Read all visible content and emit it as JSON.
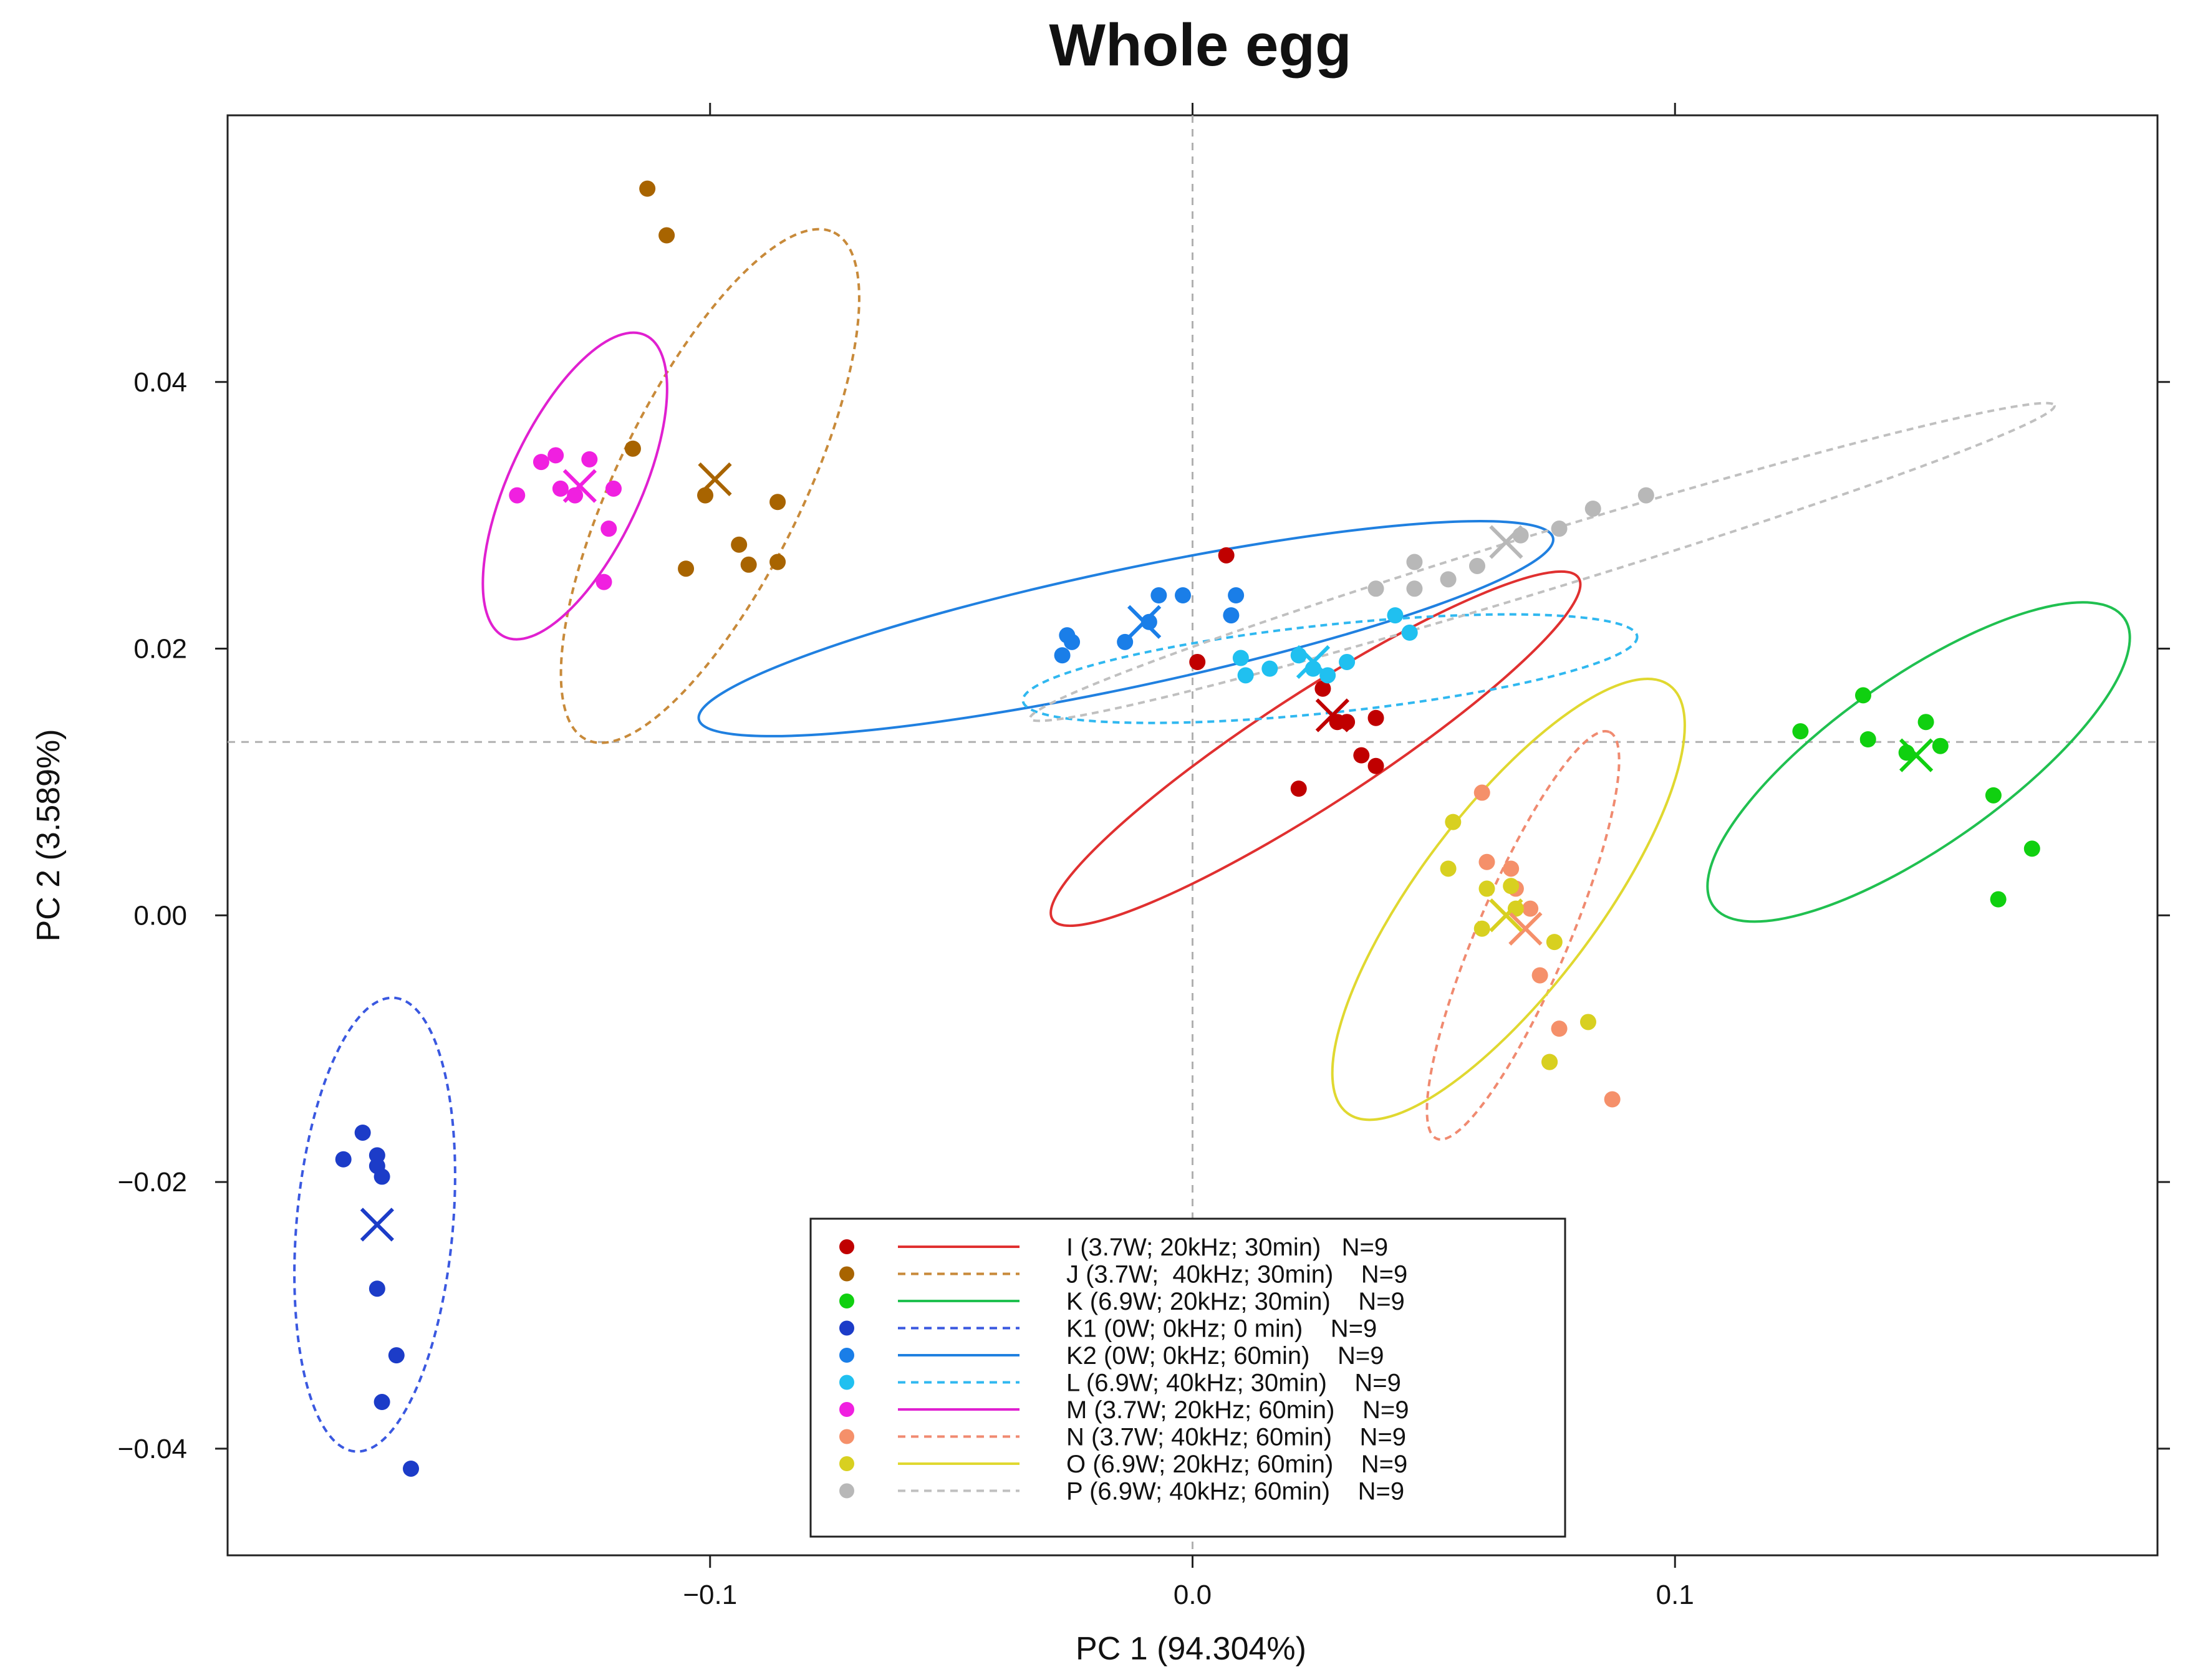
{
  "chart_data": {
    "type": "scatter",
    "title": "Whole egg",
    "xlabel": "PC 1 (94.304%)",
    "ylabel": "PC 2 (3.589%)",
    "xlim": [
      -0.2,
      0.2
    ],
    "ylim": [
      -0.048,
      0.06
    ],
    "xticks": [
      -0.1,
      0.0,
      0.1
    ],
    "xtick_labels": [
      "−0.1",
      "0.0",
      "0.1"
    ],
    "yticks": [
      -0.04,
      -0.02,
      0.0,
      0.02,
      0.04
    ],
    "ytick_labels": [
      "−0.04",
      "−0.02",
      "0.00",
      "0.02",
      "0.04"
    ],
    "reference_lines": {
      "x": 0.0,
      "y": 0.013
    },
    "grid": false,
    "legend_position": "bottom-center",
    "series": [
      {
        "name": "I",
        "label": "I (3.7W; 20kHz; 30min)   N=9",
        "point_color": "#c00000",
        "line_color": "#e03030",
        "line_style": "solid",
        "points": [
          [
            0.007,
            0.027
          ],
          [
            0.001,
            0.019
          ],
          [
            0.027,
            0.017
          ],
          [
            0.03,
            0.0145
          ],
          [
            0.032,
            0.0145
          ],
          [
            0.038,
            0.0148
          ],
          [
            0.035,
            0.012
          ],
          [
            0.038,
            0.0112
          ],
          [
            0.022,
            0.0095
          ]
        ],
        "center": [
          0.029,
          0.015
        ],
        "ellipse": {
          "cx": 0.0255,
          "cy": 0.0125,
          "rx": 0.065,
          "ry": 0.0116,
          "angle": -33
        }
      },
      {
        "name": "J",
        "label": "J (3.7W;  40kHz; 30min)    N=9",
        "point_color": "#a86400",
        "line_color": "#c88a3a",
        "line_style": "dashed",
        "points": [
          [
            -0.113,
            0.0545
          ],
          [
            -0.109,
            0.051
          ],
          [
            -0.116,
            0.035
          ],
          [
            -0.101,
            0.0315
          ],
          [
            -0.086,
            0.031
          ],
          [
            -0.094,
            0.0278
          ],
          [
            -0.092,
            0.0263
          ],
          [
            -0.086,
            0.0265
          ],
          [
            -0.105,
            0.026
          ]
        ],
        "center": [
          -0.099,
          0.0327
        ],
        "ellipse": {
          "cx": -0.1,
          "cy": 0.0322,
          "rx": 0.0585,
          "ry": 0.0192,
          "angle": -64
        }
      },
      {
        "name": "K",
        "label": "K (6.9W; 20kHz; 30min)    N=9",
        "point_color": "#10d010",
        "line_color": "#20c050",
        "line_style": "solid",
        "points": [
          [
            0.139,
            0.0165
          ],
          [
            0.126,
            0.0138
          ],
          [
            0.14,
            0.0132
          ],
          [
            0.152,
            0.0145
          ],
          [
            0.155,
            0.0127
          ],
          [
            0.148,
            0.0122
          ],
          [
            0.166,
            0.009
          ],
          [
            0.174,
            0.005
          ],
          [
            0.167,
            0.0012
          ]
        ],
        "center": [
          0.15,
          0.012
        ],
        "ellipse": {
          "cx": 0.1505,
          "cy": 0.0115,
          "rx": 0.052,
          "ry": 0.0175,
          "angle": -35
        }
      },
      {
        "name": "K1",
        "label": "K1 (0W; 0kHz; 0 min)    N=9",
        "point_color": "#1c3cc8",
        "line_color": "#3a58e0",
        "line_style": "dashed",
        "points": [
          [
            -0.172,
            -0.0163
          ],
          [
            -0.176,
            -0.0183
          ],
          [
            -0.169,
            -0.018
          ],
          [
            -0.169,
            -0.0188
          ],
          [
            -0.168,
            -0.0196
          ],
          [
            -0.169,
            -0.028
          ],
          [
            -0.165,
            -0.033
          ],
          [
            -0.168,
            -0.0365
          ],
          [
            -0.162,
            -0.0415
          ]
        ],
        "center": [
          -0.169,
          -0.0232
        ],
        "ellipse": {
          "cx": -0.1695,
          "cy": -0.0232,
          "rx": 0.0472,
          "ry": 0.0162,
          "angle": -85
        }
      },
      {
        "name": "K2",
        "label": "K2 (0W; 0kHz; 60min)    N=9",
        "point_color": "#1a7ee8",
        "line_color": "#2080e0",
        "line_style": "solid",
        "points": [
          [
            -0.025,
            0.0205
          ],
          [
            -0.027,
            0.0195
          ],
          [
            -0.026,
            0.021
          ],
          [
            -0.014,
            0.0205
          ],
          [
            -0.007,
            0.024
          ],
          [
            -0.002,
            0.024
          ],
          [
            0.008,
            0.0225
          ],
          [
            0.009,
            0.024
          ],
          [
            -0.009,
            0.022
          ]
        ],
        "center": [
          -0.01,
          0.022
        ],
        "ellipse": {
          "cx": -0.0138,
          "cy": 0.0215,
          "rx": 0.0905,
          "ry": 0.0122,
          "angle": -12
        }
      },
      {
        "name": "L",
        "label": "L (6.9W; 40kHz; 30min)    N=9",
        "point_color": "#20c0f0",
        "line_color": "#30b8f0",
        "line_style": "dashed",
        "points": [
          [
            0.01,
            0.0193
          ],
          [
            0.011,
            0.018
          ],
          [
            0.016,
            0.0185
          ],
          [
            0.022,
            0.0195
          ],
          [
            0.025,
            0.0185
          ],
          [
            0.028,
            0.018
          ],
          [
            0.032,
            0.019
          ],
          [
            0.042,
            0.0225
          ],
          [
            0.045,
            0.0212
          ]
        ],
        "center": [
          0.025,
          0.019
        ],
        "ellipse": {
          "cx": 0.0285,
          "cy": 0.0185,
          "rx": 0.064,
          "ry": 0.0091,
          "angle": -6
        }
      },
      {
        "name": "M",
        "label": "M (3.7W; 20kHz; 60min)    N=9",
        "point_color": "#f020e0",
        "line_color": "#e020d0",
        "line_style": "solid",
        "points": [
          [
            -0.132,
            0.0345
          ],
          [
            -0.135,
            0.034
          ],
          [
            -0.125,
            0.0342
          ],
          [
            -0.14,
            0.0315
          ],
          [
            -0.128,
            0.0315
          ],
          [
            -0.12,
            0.032
          ],
          [
            -0.121,
            0.029
          ],
          [
            -0.122,
            0.025
          ],
          [
            -0.131,
            0.032
          ]
        ],
        "center": [
          -0.127,
          0.0322
        ],
        "ellipse": {
          "cx": -0.128,
          "cy": 0.0322,
          "rx": 0.0345,
          "ry": 0.0136,
          "angle": -65
        }
      },
      {
        "name": "N",
        "label": "N (3.7W; 40kHz; 60min)    N=9",
        "point_color": "#f5906a",
        "line_color": "#f08a70",
        "line_style": "dashed",
        "points": [
          [
            0.06,
            0.0092
          ],
          [
            0.061,
            0.004
          ],
          [
            0.066,
            0.0035
          ],
          [
            0.067,
            0.002
          ],
          [
            0.07,
            0.0005
          ],
          [
            0.072,
            -0.0045
          ],
          [
            0.076,
            -0.0085
          ],
          [
            0.074,
            -0.011
          ],
          [
            0.087,
            -0.0138
          ]
        ],
        "center": [
          0.069,
          -0.001
        ],
        "ellipse": {
          "cx": 0.0685,
          "cy": -0.0015,
          "rx": 0.0458,
          "ry": 0.0095,
          "angle": -67
        }
      },
      {
        "name": "O",
        "label": "O (6.9W; 20kHz; 60min)    N=9",
        "point_color": "#d8d020",
        "line_color": "#e0d830",
        "line_style": "solid",
        "points": [
          [
            0.054,
            0.007
          ],
          [
            0.053,
            0.0035
          ],
          [
            0.061,
            0.002
          ],
          [
            0.066,
            0.0022
          ],
          [
            0.06,
            -0.001
          ],
          [
            0.067,
            0.0005
          ],
          [
            0.075,
            -0.002
          ],
          [
            0.082,
            -0.008
          ],
          [
            0.074,
            -0.011
          ]
        ],
        "center": [
          0.065,
          0.0
        ],
        "ellipse": {
          "cx": 0.0655,
          "cy": 0.0012,
          "rx": 0.0555,
          "ry": 0.0185,
          "angle": -53
        }
      },
      {
        "name": "P",
        "label": "P (6.9W; 40kHz; 60min)    N=9",
        "point_color": "#b8b8b8",
        "line_color": "#c0c0c0",
        "line_style": "dashed",
        "points": [
          [
            0.038,
            0.0245
          ],
          [
            0.046,
            0.0245
          ],
          [
            0.046,
            0.0265
          ],
          [
            0.053,
            0.0252
          ],
          [
            0.059,
            0.0262
          ],
          [
            0.068,
            0.0285
          ],
          [
            0.076,
            0.029
          ],
          [
            0.083,
            0.0305
          ],
          [
            0.094,
            0.0315
          ]
        ],
        "center": [
          0.065,
          0.028
        ],
        "ellipse": {
          "cx": 0.0725,
          "cy": 0.0265,
          "rx": 0.111,
          "ry": 0.0059,
          "angle": -17
        }
      }
    ]
  }
}
